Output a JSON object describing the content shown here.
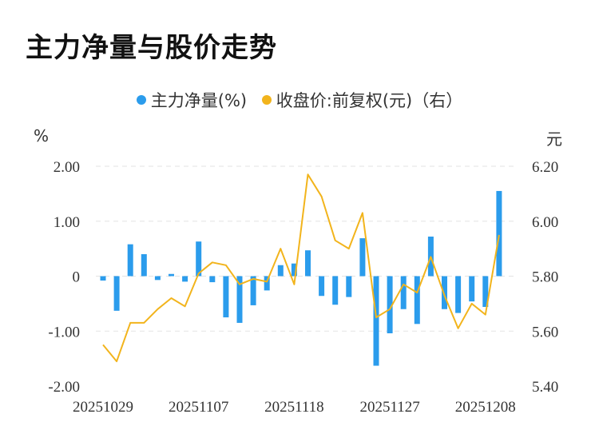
{
  "title": "主力净量与股价走势",
  "legend": {
    "bar_label": "主力净量(%)",
    "line_label": "收盘价:前复权(元)（右）"
  },
  "colors": {
    "bar": "#2b9cec",
    "line": "#f2b41c",
    "grid": "#e3e3e3"
  },
  "chart_data": {
    "type": "bar+line",
    "title": "主力净量与股价走势",
    "left_axis_unit": "%",
    "right_axis_unit": "元",
    "y_left": {
      "range": [
        -2,
        2
      ],
      "ticks": [
        "2.00",
        "1.00",
        "0",
        "-1.00",
        "-2.00"
      ],
      "tick_values": [
        2,
        1,
        0,
        -1,
        -2
      ]
    },
    "y_right": {
      "range": [
        5.4,
        6.2
      ],
      "ticks": [
        "6.20",
        "6.00",
        "5.80",
        "5.60",
        "5.40"
      ],
      "tick_values": [
        6.2,
        6.0,
        5.8,
        5.6,
        5.4
      ]
    },
    "x_ticks": [
      "20251029",
      "20251107",
      "20251118",
      "20251127",
      "20251208"
    ],
    "x_tick_index": [
      0,
      7,
      14,
      21,
      28
    ],
    "grid": "horizontal-dashed",
    "series": [
      {
        "name": "主力净量(%)",
        "type": "bar",
        "axis": "left",
        "values": [
          -0.08,
          -0.63,
          0.58,
          0.4,
          -0.07,
          0.04,
          -0.1,
          0.63,
          -0.11,
          -0.75,
          -0.85,
          -0.53,
          -0.26,
          0.2,
          0.23,
          0.47,
          -0.36,
          -0.52,
          -0.38,
          0.69,
          -1.63,
          -1.04,
          -0.6,
          -0.87,
          0.72,
          -0.6,
          -0.67,
          -0.46,
          -0.56,
          1.55
        ]
      },
      {
        "name": "收盘价:前复权(元)（右）",
        "type": "line",
        "axis": "right",
        "values": [
          5.55,
          5.49,
          5.63,
          5.63,
          5.68,
          5.72,
          5.69,
          5.81,
          5.85,
          5.84,
          5.77,
          5.79,
          5.78,
          5.9,
          5.77,
          6.17,
          6.09,
          5.93,
          5.9,
          6.03,
          5.65,
          5.68,
          5.77,
          5.74,
          5.87,
          5.73,
          5.61,
          5.7,
          5.66,
          5.95
        ]
      }
    ]
  }
}
